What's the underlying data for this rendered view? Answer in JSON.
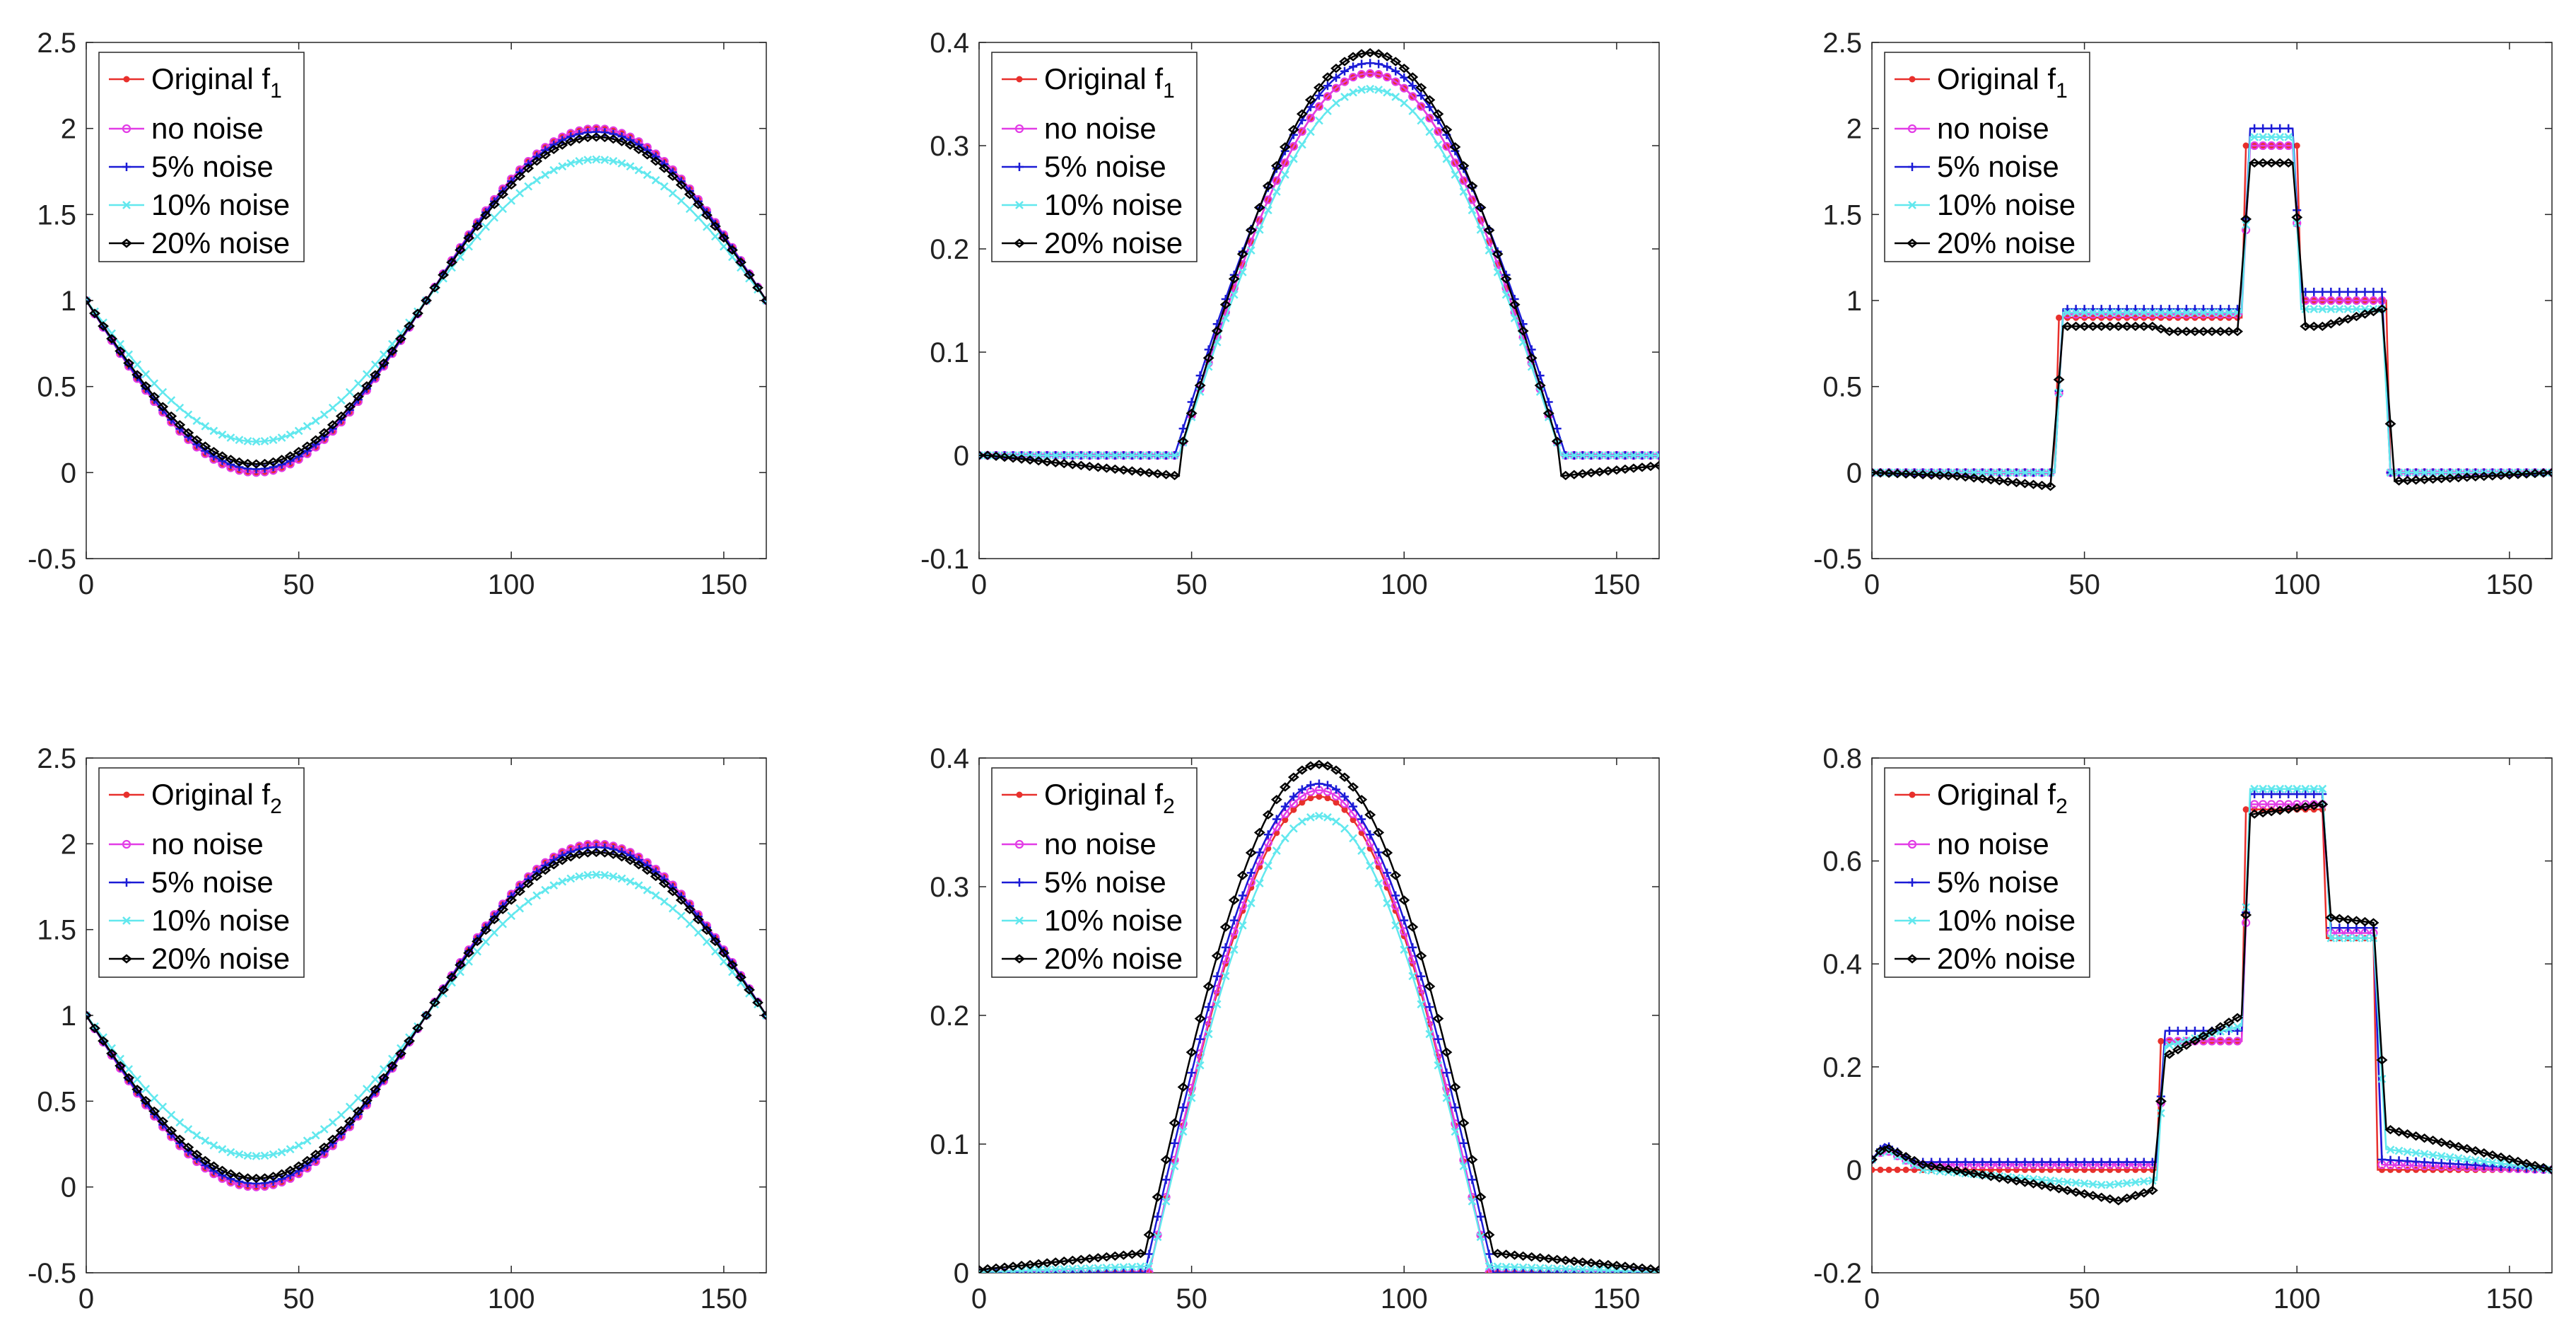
{
  "figure": {
    "legend_position": "top-left",
    "colors": {
      "original": "#e8302c",
      "no_noise": "#e23ce6",
      "noise5": "#1b1bd6",
      "noise10": "#62e8ee",
      "noise20": "#000000",
      "axes": "#262626"
    }
  },
  "chart_data": [
    {
      "type": "line",
      "panel": "row1-col1",
      "xlim": [
        0,
        160
      ],
      "ylim": [
        -0.5,
        2.5
      ],
      "xticks": [
        "0",
        "50",
        "100",
        "150"
      ],
      "yticks": [
        "-0.5",
        "0",
        "0.5",
        "1",
        "1.5",
        "2",
        "2.5"
      ],
      "legend": [
        {
          "label": "Original f",
          "sub": "1"
        },
        {
          "label": "no noise"
        },
        {
          "label": "5% noise"
        },
        {
          "label": "10% noise"
        },
        {
          "label": "20% noise"
        }
      ],
      "series": [
        {
          "name": "Original f1",
          "shape": "cos",
          "params": {
            "amp": 1.0,
            "offset": 1.0
          }
        },
        {
          "name": "no noise",
          "shape": "cos",
          "params": {
            "amp": 1.0,
            "offset": 1.0
          }
        },
        {
          "name": "5% noise",
          "shape": "cos",
          "params": {
            "amp": 0.98,
            "offset": 1.0
          }
        },
        {
          "name": "10% noise",
          "shape": "cos",
          "params": {
            "amp": 0.82,
            "offset": 1.0
          }
        },
        {
          "name": "20% noise",
          "shape": "cos",
          "params": {
            "amp": 0.95,
            "offset": 1.0
          }
        }
      ]
    },
    {
      "type": "line",
      "panel": "row1-col2",
      "xlim": [
        0,
        160
      ],
      "ylim": [
        -0.1,
        0.4
      ],
      "xticks": [
        "0",
        "50",
        "100",
        "150"
      ],
      "yticks": [
        "-0.1",
        "0",
        "0.1",
        "0.2",
        "0.3",
        "0.4"
      ],
      "legend": [
        {
          "label": "Original f",
          "sub": "1"
        },
        {
          "label": "no noise"
        },
        {
          "label": "5% noise"
        },
        {
          "label": "10% noise"
        },
        {
          "label": "20% noise"
        }
      ],
      "series": [
        {
          "name": "Original f1",
          "shape": "bump",
          "params": {
            "peak": 0.37,
            "center": 92,
            "half": 45,
            "dip": 0
          }
        },
        {
          "name": "no noise",
          "shape": "bump",
          "params": {
            "peak": 0.37,
            "center": 92,
            "half": 45,
            "dip": 0
          }
        },
        {
          "name": "5% noise",
          "shape": "bump",
          "params": {
            "peak": 0.38,
            "center": 92,
            "half": 46,
            "dip": 0
          }
        },
        {
          "name": "10% noise",
          "shape": "bump",
          "params": {
            "peak": 0.355,
            "center": 92,
            "half": 45,
            "dip": 0
          }
        },
        {
          "name": "20% noise",
          "shape": "bump",
          "params": {
            "peak": 0.39,
            "center": 92,
            "half": 45,
            "dip": -0.02
          }
        }
      ]
    },
    {
      "type": "line",
      "panel": "row1-col3",
      "xlim": [
        0,
        160
      ],
      "ylim": [
        -0.5,
        2.5
      ],
      "xticks": [
        "0",
        "50",
        "100",
        "150"
      ],
      "yticks": [
        "-0.5",
        "0",
        "0.5",
        "1",
        "1.5",
        "2",
        "2.5"
      ],
      "legend": [
        {
          "label": "Original f",
          "sub": "1"
        },
        {
          "label": "no noise"
        },
        {
          "label": "5% noise"
        },
        {
          "label": "10% noise"
        },
        {
          "label": "20% noise"
        }
      ],
      "series": [
        {
          "name": "Original f1",
          "shape": "steps",
          "points": [
            [
              0,
              0
            ],
            [
              43,
              0
            ],
            [
              44,
              0.9
            ],
            [
              87,
              0.9
            ],
            [
              88,
              1.9
            ],
            [
              100,
              1.9
            ],
            [
              101,
              1.0
            ],
            [
              121,
              1.0
            ],
            [
              122,
              0
            ],
            [
              160,
              0
            ]
          ]
        },
        {
          "name": "no noise",
          "shape": "steps",
          "points": [
            [
              0,
              0
            ],
            [
              43,
              0
            ],
            [
              45,
              0.92
            ],
            [
              87,
              0.92
            ],
            [
              89,
              1.9
            ],
            [
              99,
              1.9
            ],
            [
              101,
              1.0
            ],
            [
              120,
              1.0
            ],
            [
              122,
              0
            ],
            [
              160,
              0
            ]
          ]
        },
        {
          "name": "5% noise",
          "shape": "steps",
          "points": [
            [
              0,
              0
            ],
            [
              43,
              0
            ],
            [
              45,
              0.95
            ],
            [
              87,
              0.95
            ],
            [
              89,
              2.0
            ],
            [
              99,
              2.0
            ],
            [
              101,
              1.05
            ],
            [
              120,
              1.05
            ],
            [
              122,
              0
            ],
            [
              160,
              0
            ]
          ]
        },
        {
          "name": "10% noise",
          "shape": "steps",
          "points": [
            [
              0,
              0
            ],
            [
              43,
              0
            ],
            [
              45,
              0.93
            ],
            [
              87,
              0.93
            ],
            [
              89,
              1.95
            ],
            [
              99,
              1.95
            ],
            [
              101,
              0.95
            ],
            [
              120,
              0.95
            ],
            [
              122,
              0
            ],
            [
              160,
              0
            ]
          ]
        },
        {
          "name": "20% noise",
          "shape": "steps",
          "points": [
            [
              0,
              0
            ],
            [
              20,
              -0.02
            ],
            [
              42,
              -0.08
            ],
            [
              45,
              0.85
            ],
            [
              66,
              0.85
            ],
            [
              70,
              0.82
            ],
            [
              86,
              0.82
            ],
            [
              89,
              1.8
            ],
            [
              99,
              1.8
            ],
            [
              102,
              0.85
            ],
            [
              106,
              0.85
            ],
            [
              120,
              0.95
            ],
            [
              123,
              -0.05
            ],
            [
              160,
              0
            ]
          ]
        }
      ]
    },
    {
      "type": "line",
      "panel": "row2-col1",
      "xlim": [
        0,
        160
      ],
      "ylim": [
        -0.5,
        2.5
      ],
      "xticks": [
        "0",
        "50",
        "100",
        "150"
      ],
      "yticks": [
        "-0.5",
        "0",
        "0.5",
        "1",
        "1.5",
        "2",
        "2.5"
      ],
      "legend": [
        {
          "label": "Original f",
          "sub": "2"
        },
        {
          "label": "no noise"
        },
        {
          "label": "5% noise"
        },
        {
          "label": "10% noise"
        },
        {
          "label": "20% noise"
        }
      ],
      "series": [
        {
          "name": "Original f2",
          "shape": "cos",
          "params": {
            "amp": 1.0,
            "offset": 1.0
          }
        },
        {
          "name": "no noise",
          "shape": "cos",
          "params": {
            "amp": 1.0,
            "offset": 1.0
          }
        },
        {
          "name": "5% noise",
          "shape": "cos",
          "params": {
            "amp": 0.98,
            "offset": 1.0
          }
        },
        {
          "name": "10% noise",
          "shape": "cos",
          "params": {
            "amp": 0.82,
            "offset": 1.0
          }
        },
        {
          "name": "20% noise",
          "shape": "cos",
          "params": {
            "amp": 0.95,
            "offset": 1.0
          }
        }
      ]
    },
    {
      "type": "line",
      "panel": "row2-col2",
      "xlim": [
        0,
        160
      ],
      "ylim": [
        0,
        0.4
      ],
      "xticks": [
        "0",
        "50",
        "100",
        "150"
      ],
      "yticks": [
        "0",
        "0.1",
        "0.2",
        "0.3",
        "0.4"
      ],
      "legend": [
        {
          "label": "Original f",
          "sub": "2"
        },
        {
          "label": "no noise"
        },
        {
          "label": "5% noise"
        },
        {
          "label": "10% noise"
        },
        {
          "label": "20% noise"
        }
      ],
      "series": [
        {
          "name": "Original f2",
          "shape": "bump",
          "params": {
            "peak": 0.37,
            "center": 80,
            "half": 40,
            "dip": 0
          }
        },
        {
          "name": "no noise",
          "shape": "bump",
          "params": {
            "peak": 0.375,
            "center": 80,
            "half": 40,
            "dip": 0
          }
        },
        {
          "name": "5% noise",
          "shape": "bump",
          "params": {
            "peak": 0.38,
            "center": 80,
            "half": 41,
            "dip": 0
          }
        },
        {
          "name": "10% noise",
          "shape": "bump",
          "params": {
            "peak": 0.355,
            "center": 80,
            "half": 40,
            "dip": 0.005
          }
        },
        {
          "name": "20% noise",
          "shape": "bump",
          "params": {
            "peak": 0.395,
            "center": 80,
            "half": 42,
            "dip": 0.015
          }
        }
      ]
    },
    {
      "type": "line",
      "panel": "row2-col3",
      "xlim": [
        0,
        160
      ],
      "ylim": [
        -0.2,
        0.8
      ],
      "xticks": [
        "0",
        "50",
        "100",
        "150"
      ],
      "yticks": [
        "-0.2",
        "0",
        "0.2",
        "0.4",
        "0.6",
        "0.8"
      ],
      "legend": [
        {
          "label": "Original f",
          "sub": "2"
        },
        {
          "label": "no noise"
        },
        {
          "label": "5% noise"
        },
        {
          "label": "10% noise"
        },
        {
          "label": "20% noise"
        }
      ],
      "series": [
        {
          "name": "Original f2",
          "shape": "steps",
          "points": [
            [
              0,
              0
            ],
            [
              67,
              0
            ],
            [
              68,
              0.25
            ],
            [
              87,
              0.25
            ],
            [
              88,
              0.7
            ],
            [
              106,
              0.7
            ],
            [
              107,
              0.45
            ],
            [
              118,
              0.45
            ],
            [
              119,
              0
            ],
            [
              160,
              0
            ]
          ]
        },
        {
          "name": "no noise",
          "shape": "steps",
          "points": [
            [
              0,
              0.02
            ],
            [
              3,
              0.04
            ],
            [
              10,
              0.01
            ],
            [
              67,
              0.01
            ],
            [
              69,
              0.25
            ],
            [
              87,
              0.25
            ],
            [
              89,
              0.71
            ],
            [
              106,
              0.71
            ],
            [
              108,
              0.46
            ],
            [
              118,
              0.46
            ],
            [
              120,
              0.01
            ],
            [
              160,
              0
            ]
          ]
        },
        {
          "name": "5% noise",
          "shape": "steps",
          "points": [
            [
              0,
              0.02
            ],
            [
              3,
              0.05
            ],
            [
              10,
              0.015
            ],
            [
              67,
              0.015
            ],
            [
              69,
              0.27
            ],
            [
              87,
              0.27
            ],
            [
              89,
              0.73
            ],
            [
              106,
              0.73
            ],
            [
              108,
              0.47
            ],
            [
              118,
              0.47
            ],
            [
              120,
              0.02
            ],
            [
              160,
              0
            ]
          ]
        },
        {
          "name": "10% noise",
          "shape": "steps",
          "points": [
            [
              0,
              0.02
            ],
            [
              3,
              0.04
            ],
            [
              12,
              0.0
            ],
            [
              55,
              -0.03
            ],
            [
              67,
              -0.02
            ],
            [
              69,
              0.24
            ],
            [
              87,
              0.28
            ],
            [
              89,
              0.74
            ],
            [
              106,
              0.74
            ],
            [
              108,
              0.45
            ],
            [
              118,
              0.45
            ],
            [
              121,
              0.04
            ],
            [
              160,
              0
            ]
          ]
        },
        {
          "name": "20% noise",
          "shape": "steps",
          "points": [
            [
              0,
              0.02
            ],
            [
              3,
              0.045
            ],
            [
              12,
              0.01
            ],
            [
              40,
              -0.03
            ],
            [
              58,
              -0.06
            ],
            [
              66,
              -0.04
            ],
            [
              69,
              0.22
            ],
            [
              87,
              0.3
            ],
            [
              89,
              0.69
            ],
            [
              106,
              0.71
            ],
            [
              108,
              0.49
            ],
            [
              118,
              0.48
            ],
            [
              121,
              0.08
            ],
            [
              160,
              0
            ]
          ]
        }
      ]
    }
  ]
}
